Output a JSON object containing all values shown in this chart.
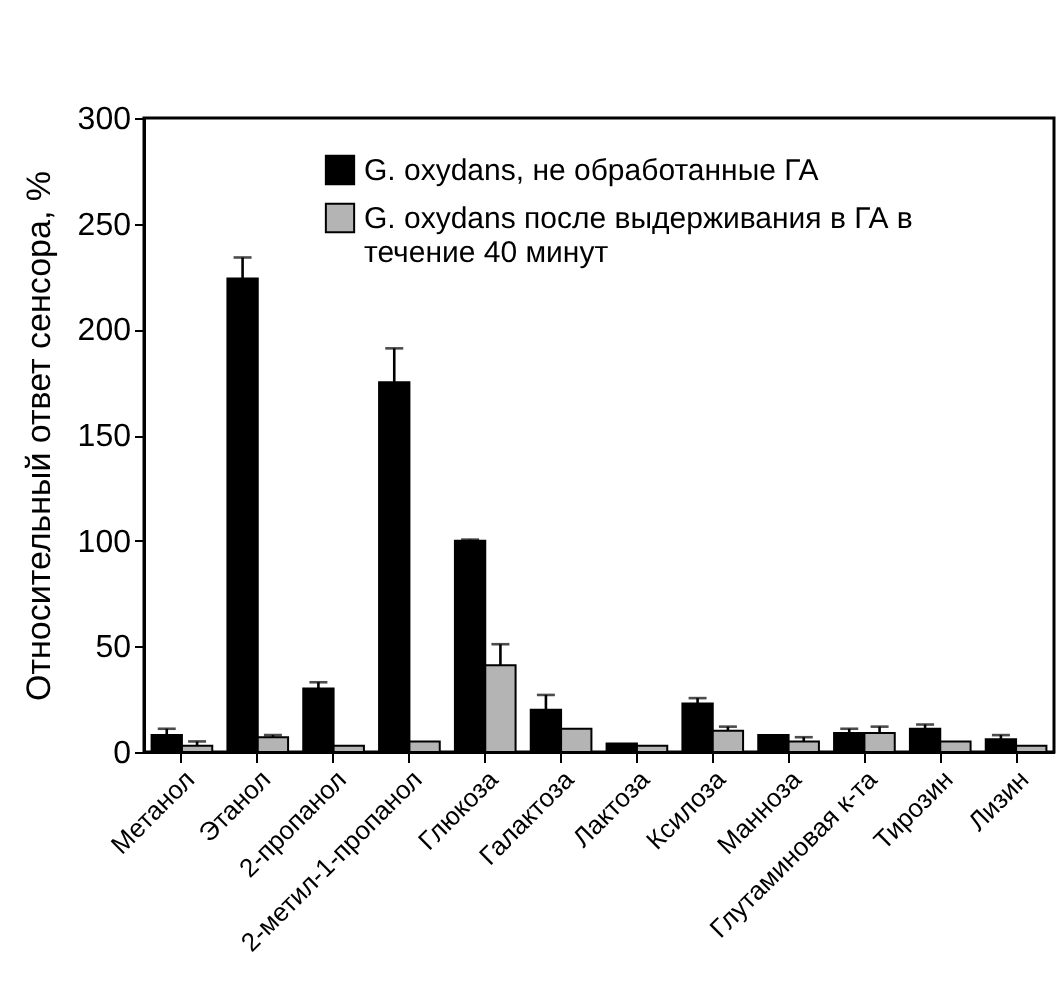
{
  "chart_data": {
    "type": "bar",
    "ylabel": "Относительный ответ сенсора, %",
    "categories": [
      "Метанол",
      "Этанол",
      "2-пропанол",
      "2-метил-1-пропанол",
      "Глюкоза",
      "Галактоза",
      "Лактоза",
      "Ксилоза",
      "Манноза",
      "Глутаминовая к-та",
      "Тирозин",
      "Лизин"
    ],
    "series": [
      {
        "name": "G. oxydans, не обработанные ГА",
        "color": "#000000",
        "values": [
          8,
          224,
          30,
          175,
          100,
          20,
          4,
          23,
          8,
          9,
          11,
          6
        ],
        "errors": [
          3,
          10,
          3,
          16,
          0.5,
          7,
          null,
          2.5,
          null,
          2,
          2,
          2
        ]
      },
      {
        "name": "G. oxydans после выдерживания в ГА в течение 40 минут",
        "color": "#b4b4b4",
        "values": [
          3,
          7,
          3,
          5,
          41,
          11,
          3,
          10,
          5,
          9,
          5,
          3
        ],
        "errors": [
          2,
          1,
          null,
          null,
          10,
          null,
          null,
          2,
          2,
          3,
          null,
          null
        ]
      }
    ],
    "ylim": [
      0,
      300
    ],
    "yticks": [
      0,
      50,
      100,
      150,
      200,
      250,
      300
    ],
    "grid": false,
    "legend": "top"
  }
}
